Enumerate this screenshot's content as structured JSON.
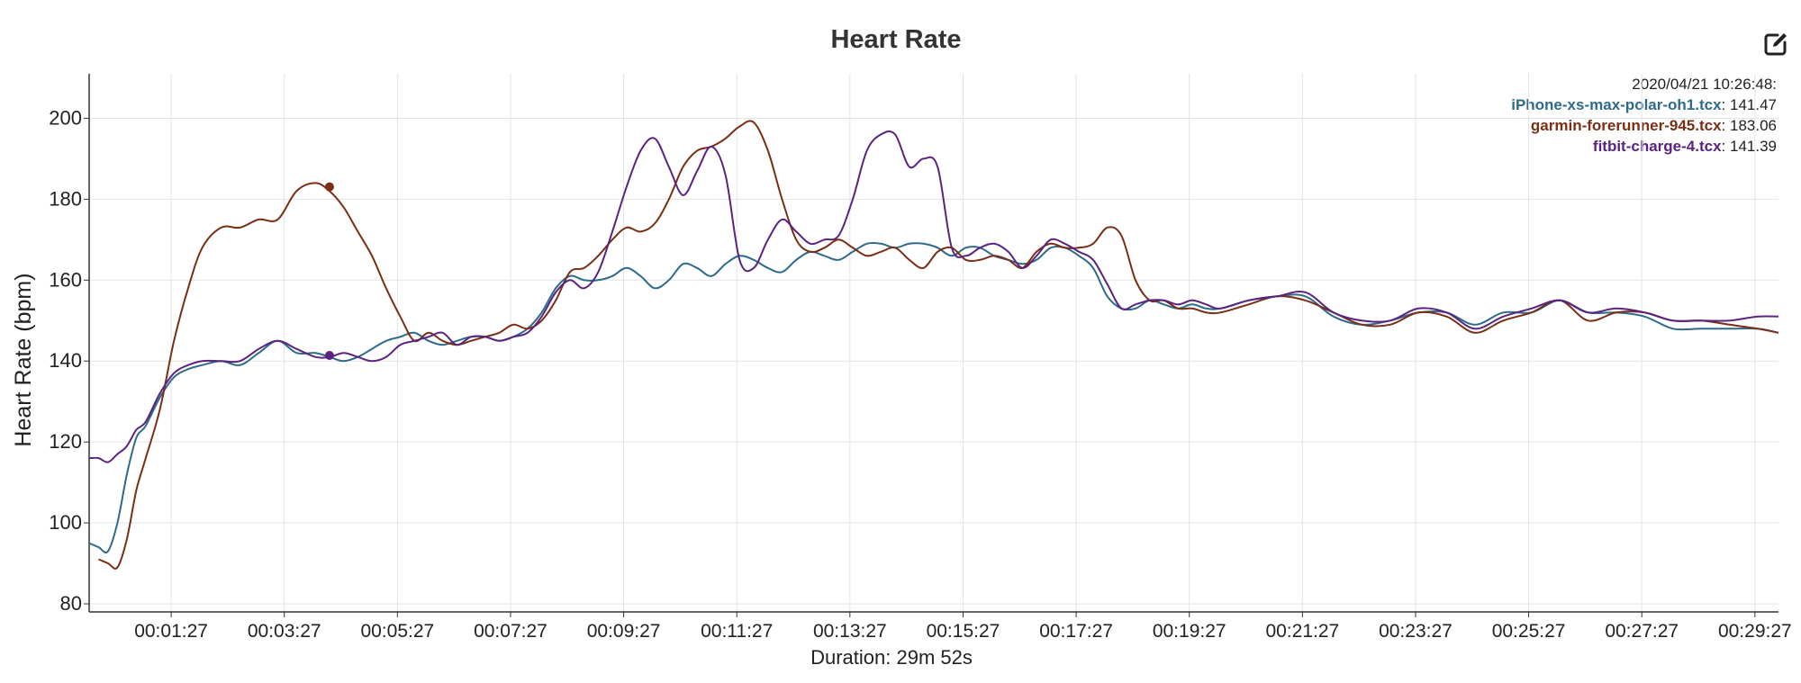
{
  "header": {
    "edit_icon": "edit-icon"
  },
  "hover": {
    "timestamp": "2020/04/21 10:26:48:",
    "values": [
      {
        "name": "iPhone-xs-max-polar-oh1.tcx",
        "value": "141.47"
      },
      {
        "name": "garmin-forerunner-945.tcx",
        "value": "183.06"
      },
      {
        "name": "fitbit-charge-4.tcx",
        "value": "141.39"
      }
    ]
  },
  "chart_data": {
    "type": "line",
    "title": "Heart Rate",
    "xlabel": "Duration: 29m 52s",
    "ylabel": "Heart Rate (bpm)",
    "xlim": [
      0,
      1792
    ],
    "ylim": [
      78,
      211
    ],
    "grid": true,
    "legend": "top-right",
    "y_ticks": [
      80,
      100,
      120,
      140,
      160,
      180,
      200
    ],
    "x_tick_seconds": [
      87,
      207,
      327,
      447,
      567,
      687,
      807,
      927,
      1047,
      1167,
      1287,
      1407,
      1527,
      1647,
      1767
    ],
    "x_tick_labels": [
      "00:01:27",
      "00:03:27",
      "00:05:27",
      "00:07:27",
      "00:09:27",
      "00:11:27",
      "00:13:27",
      "00:15:27",
      "00:17:27",
      "00:19:27",
      "00:21:27",
      "00:23:27",
      "00:25:27",
      "00:27:27",
      "00:29:27"
    ],
    "x": [
      0,
      10,
      20,
      30,
      40,
      50,
      60,
      75,
      90,
      105,
      120,
      140,
      160,
      180,
      200,
      220,
      240,
      255,
      270,
      285,
      300,
      315,
      330,
      345,
      360,
      375,
      390,
      405,
      420,
      435,
      450,
      465,
      480,
      495,
      510,
      525,
      540,
      555,
      570,
      585,
      600,
      615,
      630,
      645,
      660,
      675,
      690,
      705,
      720,
      735,
      750,
      765,
      780,
      795,
      810,
      825,
      840,
      855,
      870,
      885,
      900,
      915,
      930,
      945,
      960,
      975,
      990,
      1005,
      1020,
      1035,
      1050,
      1065,
      1080,
      1095,
      1110,
      1125,
      1140,
      1155,
      1170,
      1185,
      1200,
      1230,
      1260,
      1290,
      1320,
      1350,
      1380,
      1410,
      1440,
      1470,
      1500,
      1530,
      1560,
      1590,
      1620,
      1650,
      1680,
      1710,
      1740,
      1770,
      1792
    ],
    "series": [
      {
        "name": "iPhone-xs-max-polar-oh1.tcx",
        "color": "#2e6a8a",
        "values": [
          95,
          94,
          93,
          100,
          112,
          121,
          124,
          131,
          136,
          138,
          139,
          140,
          139,
          142,
          145,
          142,
          142,
          141,
          140,
          141,
          143,
          145,
          146,
          147,
          145,
          144,
          145,
          146,
          146,
          145,
          146,
          148,
          152,
          158,
          161,
          160,
          160,
          161,
          163,
          161,
          158,
          160,
          164,
          163,
          161,
          164,
          166,
          165,
          163,
          162,
          165,
          167,
          166,
          165,
          167,
          169,
          169,
          168,
          169,
          169,
          168,
          166,
          168,
          168,
          166,
          165,
          164,
          165,
          168,
          168,
          166,
          163,
          156,
          153,
          153,
          155,
          154,
          153,
          154,
          153,
          153,
          155,
          156,
          156,
          151,
          149,
          150,
          152,
          152,
          149,
          152,
          152,
          155,
          152,
          152,
          151,
          148,
          148,
          148,
          148,
          147
        ]
      },
      {
        "name": "garmin-forerunner-945.tcx",
        "color": "#7a2e14",
        "values": [
          null,
          91,
          90,
          89,
          96,
          108,
          116,
          128,
          145,
          158,
          168,
          173,
          173,
          175,
          175,
          182,
          184,
          182,
          178,
          172,
          166,
          158,
          151,
          145,
          147,
          145,
          144,
          145,
          146,
          147,
          149,
          148,
          150,
          155,
          162,
          163,
          166,
          170,
          173,
          172,
          174,
          180,
          188,
          192,
          193,
          195,
          198,
          199,
          192,
          180,
          170,
          167,
          168,
          170,
          168,
          166,
          167,
          168,
          165,
          163,
          167,
          168,
          165,
          165,
          166,
          165,
          163,
          167,
          169,
          168,
          168,
          169,
          173,
          171,
          160,
          155,
          155,
          153,
          153,
          152,
          152,
          154,
          156,
          155,
          152,
          149,
          149,
          152,
          151,
          147,
          150,
          152,
          155,
          150,
          152,
          152,
          150,
          150,
          149,
          148,
          147
        ]
      },
      {
        "name": "fitbit-charge-4.tcx",
        "color": "#5b2380",
        "values": [
          116,
          116,
          115,
          117,
          119,
          123,
          125,
          132,
          137,
          139,
          140,
          140,
          140,
          143,
          145,
          143,
          141,
          141,
          142,
          141,
          140,
          141,
          144,
          145,
          146,
          147,
          144,
          146,
          146,
          145,
          146,
          147,
          151,
          157,
          160,
          158,
          162,
          172,
          183,
          192,
          195,
          188,
          181,
          187,
          193,
          186,
          165,
          163,
          170,
          175,
          172,
          169,
          170,
          171,
          180,
          192,
          196,
          196,
          188,
          190,
          188,
          168,
          166,
          168,
          169,
          167,
          163,
          166,
          170,
          169,
          167,
          165,
          159,
          153,
          154,
          155,
          155,
          154,
          155,
          154,
          153,
          155,
          156,
          157,
          152,
          150,
          150,
          153,
          152,
          148,
          151,
          153,
          155,
          152,
          153,
          152,
          150,
          150,
          150,
          151,
          151
        ]
      }
    ],
    "hover_markers": [
      {
        "series": 1,
        "x": 255,
        "y": 183.06
      },
      {
        "series": 2,
        "x": 255,
        "y": 141.39
      }
    ]
  }
}
